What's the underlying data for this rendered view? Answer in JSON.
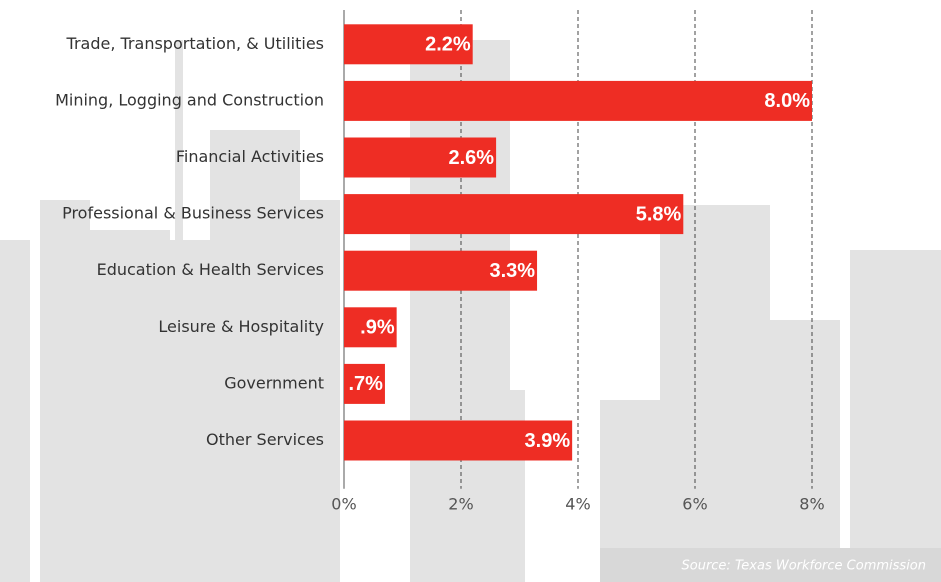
{
  "chart_data": {
    "type": "bar",
    "orientation": "horizontal",
    "categories": [
      "Trade, Transportation, & Utilities",
      "Mining, Logging and Construction",
      "Financial Activities",
      "Professional & Business Services",
      "Education & Health Services",
      "Leisure & Hospitality",
      "Government",
      "Other Services"
    ],
    "values": [
      2.2,
      8.0,
      2.6,
      5.8,
      3.3,
      0.9,
      0.7,
      3.9
    ],
    "value_labels": [
      "2.2%",
      "8.0%",
      "2.6%",
      "5.8%",
      "3.3%",
      ".9%",
      ".7%",
      "3.9%"
    ],
    "color": "#ee2d24",
    "xlim": [
      0,
      8
    ],
    "xticks": [
      {
        "value": 0,
        "label": "0%"
      },
      {
        "value": 2,
        "label": "2%"
      },
      {
        "value": 4,
        "label": "4%"
      },
      {
        "value": 6,
        "label": "6%"
      },
      {
        "value": 8,
        "label": "8%"
      }
    ],
    "grid": true,
    "annotation": "Source: Texas Workforce Commission"
  }
}
